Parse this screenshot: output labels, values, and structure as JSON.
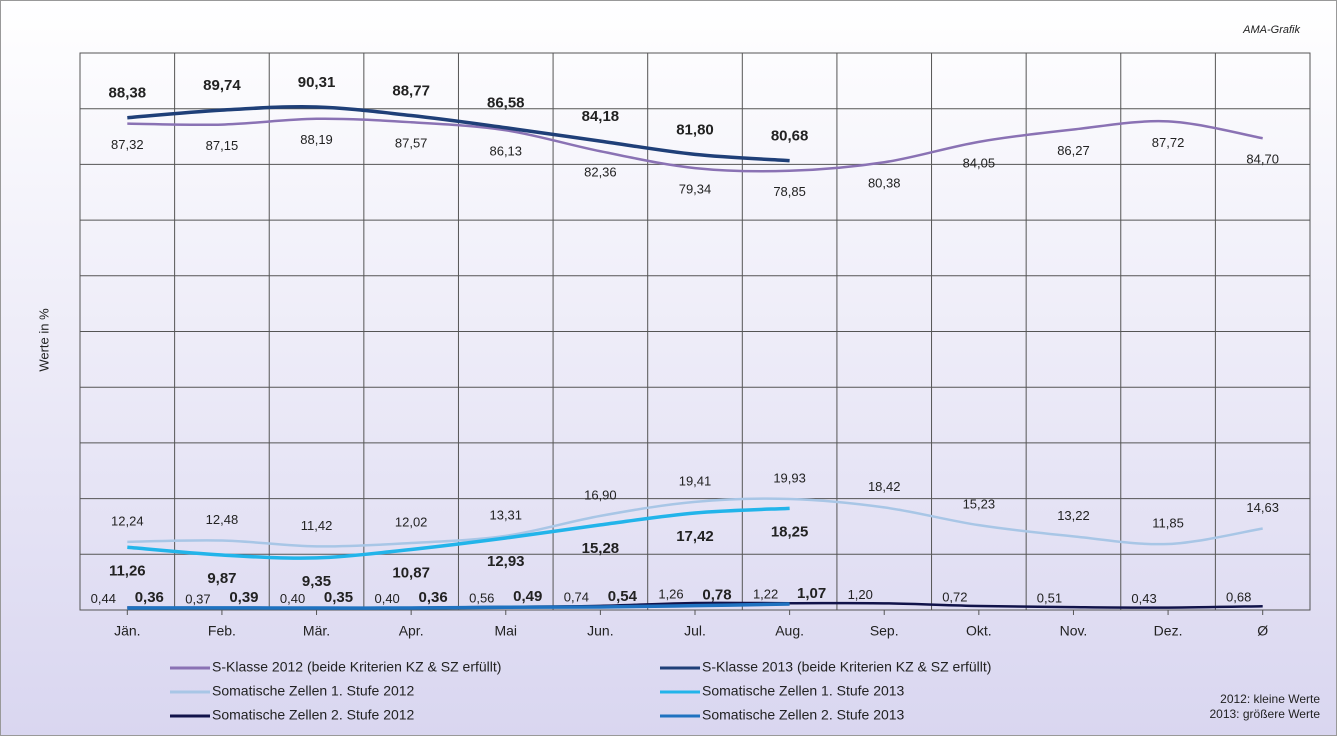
{
  "chart_data": {
    "type": "line",
    "source": "AMA-Grafik",
    "y_label": "Werte in %",
    "note": [
      "2012: kleine Werte",
      "2013: größere Werte"
    ],
    "categories": [
      "Jän.",
      "Feb.",
      "Mär.",
      "Apr.",
      "Mai",
      "Jun.",
      "Jul.",
      "Aug.",
      "Sep.",
      "Okt.",
      "Nov.",
      "Dez.",
      "Ø"
    ],
    "ylim": [
      0,
      100
    ],
    "yticks": [
      0,
      10,
      20,
      30,
      40,
      50,
      60,
      70,
      80,
      90,
      100
    ],
    "grid": true,
    "legend": "bottom",
    "series": [
      {
        "name": "S-Klasse 2012 (beide Kriterien KZ & SZ erfüllt)",
        "color": "#8a72b4",
        "values": [
          87.32,
          87.15,
          88.19,
          87.57,
          86.13,
          82.36,
          79.34,
          78.85,
          80.38,
          84.05,
          86.27,
          87.72,
          84.7
        ],
        "value_labels": [
          "87,32",
          "87,15",
          "88,19",
          "87,57",
          "86,13",
          "82,36",
          "79,34",
          "78,85",
          "80,38",
          "84,05",
          "86,27",
          "87,72",
          "84,70"
        ]
      },
      {
        "name": "S-Klasse 2013 (beide Kriterien KZ & SZ erfüllt)",
        "color": "#1f3f78",
        "values": [
          88.38,
          89.74,
          90.31,
          88.77,
          86.58,
          84.18,
          81.8,
          80.68,
          null,
          null,
          null,
          null,
          null
        ],
        "value_labels": [
          "88,38",
          "89,74",
          "90,31",
          "88,77",
          "86,58",
          "84,18",
          "81,80",
          "80,68",
          null,
          null,
          null,
          null,
          null
        ]
      },
      {
        "name": "Somatische Zellen 1. Stufe 2012",
        "color": "#a8c6e6",
        "values": [
          12.24,
          12.48,
          11.42,
          12.02,
          13.31,
          16.9,
          19.41,
          19.93,
          18.42,
          15.23,
          13.22,
          11.85,
          14.63
        ],
        "value_labels": [
          "12,24",
          "12,48",
          "11,42",
          "12,02",
          "13,31",
          "16,90",
          "19,41",
          "19,93",
          "18,42",
          "15,23",
          "13,22",
          "11,85",
          "14,63"
        ]
      },
      {
        "name": "Somatische Zellen 1. Stufe 2013",
        "color": "#22b4ea",
        "values": [
          11.26,
          9.87,
          9.35,
          10.87,
          12.93,
          15.28,
          17.42,
          18.25,
          null,
          null,
          null,
          null,
          null
        ],
        "value_labels": [
          "11,26",
          "9,87",
          "9,35",
          "10,87",
          "12,93",
          "15,28",
          "17,42",
          "18,25",
          null,
          null,
          null,
          null,
          null
        ]
      },
      {
        "name": "Somatische Zellen 2. Stufe 2012",
        "color": "#11134a",
        "values": [
          0.44,
          0.37,
          0.4,
          0.4,
          0.56,
          0.74,
          1.26,
          1.22,
          1.2,
          0.72,
          0.51,
          0.43,
          0.68
        ],
        "value_labels": [
          "0,44",
          "0,37",
          "0,40",
          "0,40",
          "0,56",
          "0,74",
          "1,26",
          "1,22",
          "1,20",
          "0,72",
          "0,51",
          "0,43",
          "0,68"
        ]
      },
      {
        "name": "Somatische Zellen 2. Stufe 2013",
        "color": "#1f72c0",
        "values": [
          0.36,
          0.39,
          0.35,
          0.36,
          0.49,
          0.54,
          0.78,
          1.07,
          null,
          null,
          null,
          null,
          null
        ],
        "value_labels": [
          "0,36",
          "0,39",
          "0,35",
          "0,36",
          "0,49",
          "0,54",
          "0,78",
          "1,07",
          null,
          null,
          null,
          null,
          null
        ]
      }
    ]
  }
}
